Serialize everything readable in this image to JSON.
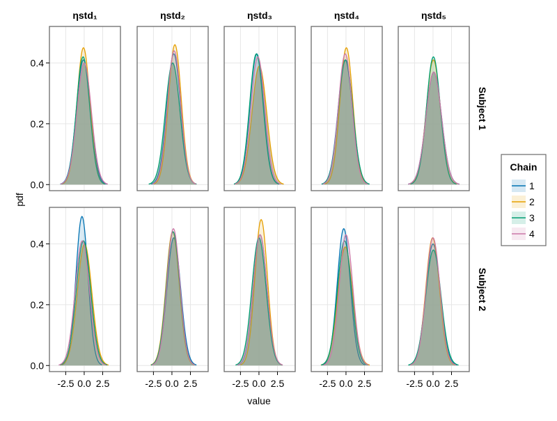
{
  "chart_data": {
    "type": "area",
    "subtype": "density-facet-grid",
    "xlabel": "value",
    "ylabel": "pdf",
    "xlim": [
      -4.7,
      4.9
    ],
    "ylim": [
      -0.02,
      0.52
    ],
    "x_ticks": [
      -2.5,
      0.0,
      2.5
    ],
    "x_tick_labels": [
      "-2.5",
      "0.0",
      "2.5"
    ],
    "y_ticks": [
      0.0,
      0.2,
      0.4
    ],
    "y_tick_labels": [
      "0.0",
      "0.2",
      "0.4"
    ],
    "grid": true,
    "columns": [
      "ηstd₁",
      "ηstd₂",
      "ηstd₃",
      "ηstd₄",
      "ηstd₅"
    ],
    "rows": [
      "Subject 1",
      "Subject 2"
    ],
    "legend": {
      "title": "Chain",
      "placement": "right",
      "entries": [
        {
          "label": "1",
          "color": "#0072b2"
        },
        {
          "label": "2",
          "color": "#e69f00"
        },
        {
          "label": "3",
          "color": "#009e73"
        },
        {
          "label": "4",
          "color": "#cc79a7"
        }
      ]
    },
    "fill_color": "#bfc8bd",
    "panels": [
      {
        "row": "Subject 1",
        "column": "ηstd₁",
        "series": [
          {
            "chain": "1",
            "peak": 0.41,
            "mean": -0.1,
            "sd": 0.95
          },
          {
            "chain": "2",
            "peak": 0.45,
            "mean": -0.1,
            "sd": 0.88
          },
          {
            "chain": "3",
            "peak": 0.42,
            "mean": -0.15,
            "sd": 0.9
          },
          {
            "chain": "4",
            "peak": 0.4,
            "mean": 0.0,
            "sd": 0.97
          }
        ]
      },
      {
        "row": "Subject 2",
        "column": "ηstd₁",
        "series": [
          {
            "chain": "1",
            "peak": 0.49,
            "mean": -0.3,
            "sd": 0.82
          },
          {
            "chain": "2",
            "peak": 0.4,
            "mean": 0.05,
            "sd": 0.98
          },
          {
            "chain": "3",
            "peak": 0.41,
            "mean": -0.1,
            "sd": 0.97
          },
          {
            "chain": "4",
            "peak": 0.41,
            "mean": -0.25,
            "sd": 0.97
          }
        ]
      },
      {
        "row": "Subject 1",
        "column": "ηstd₂",
        "series": [
          {
            "chain": "1",
            "peak": 0.43,
            "mean": 0.25,
            "sd": 0.92
          },
          {
            "chain": "2",
            "peak": 0.46,
            "mean": 0.4,
            "sd": 0.87
          },
          {
            "chain": "3",
            "peak": 0.4,
            "mean": 0.1,
            "sd": 0.98
          },
          {
            "chain": "4",
            "peak": 0.44,
            "mean": 0.3,
            "sd": 0.9
          }
        ]
      },
      {
        "row": "Subject 2",
        "column": "ηstd₂",
        "series": [
          {
            "chain": "1",
            "peak": 0.42,
            "mean": 0.25,
            "sd": 0.93
          },
          {
            "chain": "2",
            "peak": 0.44,
            "mean": 0.1,
            "sd": 0.9
          },
          {
            "chain": "3",
            "peak": 0.44,
            "mean": 0.15,
            "sd": 0.9
          },
          {
            "chain": "4",
            "peak": 0.45,
            "mean": 0.2,
            "sd": 0.88
          }
        ]
      },
      {
        "row": "Subject 1",
        "column": "ηstd₃",
        "series": [
          {
            "chain": "1",
            "peak": 0.43,
            "mean": -0.3,
            "sd": 0.92
          },
          {
            "chain": "2",
            "peak": 0.39,
            "mean": 0.05,
            "sd": 1.0
          },
          {
            "chain": "3",
            "peak": 0.43,
            "mean": -0.35,
            "sd": 0.92
          },
          {
            "chain": "4",
            "peak": 0.42,
            "mean": -0.15,
            "sd": 0.94
          }
        ]
      },
      {
        "row": "Subject 2",
        "column": "ηstd₃",
        "series": [
          {
            "chain": "1",
            "peak": 0.43,
            "mean": 0.15,
            "sd": 0.92
          },
          {
            "chain": "2",
            "peak": 0.48,
            "mean": 0.3,
            "sd": 0.85
          },
          {
            "chain": "3",
            "peak": 0.42,
            "mean": 0.0,
            "sd": 0.96
          },
          {
            "chain": "4",
            "peak": 0.43,
            "mean": 0.15,
            "sd": 0.93
          }
        ]
      },
      {
        "row": "Subject 1",
        "column": "ηstd₄",
        "series": [
          {
            "chain": "1",
            "peak": 0.41,
            "mean": -0.1,
            "sd": 0.97
          },
          {
            "chain": "2",
            "peak": 0.45,
            "mean": 0.05,
            "sd": 0.88
          },
          {
            "chain": "3",
            "peak": 0.41,
            "mean": -0.05,
            "sd": 0.98
          },
          {
            "chain": "4",
            "peak": 0.43,
            "mean": -0.1,
            "sd": 0.92
          }
        ]
      },
      {
        "row": "Subject 2",
        "column": "ηstd₄",
        "series": [
          {
            "chain": "1",
            "peak": 0.45,
            "mean": -0.3,
            "sd": 0.88
          },
          {
            "chain": "2",
            "peak": 0.39,
            "mean": -0.1,
            "sd": 1.0
          },
          {
            "chain": "3",
            "peak": 0.41,
            "mean": -0.2,
            "sd": 0.96
          },
          {
            "chain": "4",
            "peak": 0.43,
            "mean": 0.0,
            "sd": 0.92
          }
        ]
      },
      {
        "row": "Subject 1",
        "column": "ηstd₅",
        "series": [
          {
            "chain": "1",
            "peak": 0.37,
            "mean": 0.1,
            "sd": 1.05
          },
          {
            "chain": "2",
            "peak": 0.41,
            "mean": 0.05,
            "sd": 0.96
          },
          {
            "chain": "3",
            "peak": 0.42,
            "mean": 0.05,
            "sd": 0.94
          },
          {
            "chain": "4",
            "peak": 0.37,
            "mean": 0.1,
            "sd": 1.05
          }
        ]
      },
      {
        "row": "Subject 2",
        "column": "ηstd₅",
        "series": [
          {
            "chain": "1",
            "peak": 0.4,
            "mean": 0.0,
            "sd": 0.98
          },
          {
            "chain": "2",
            "peak": 0.42,
            "mean": -0.05,
            "sd": 0.93
          },
          {
            "chain": "3",
            "peak": 0.38,
            "mean": 0.05,
            "sd": 1.03
          },
          {
            "chain": "4",
            "peak": 0.42,
            "mean": 0.0,
            "sd": 0.94
          }
        ]
      }
    ]
  }
}
